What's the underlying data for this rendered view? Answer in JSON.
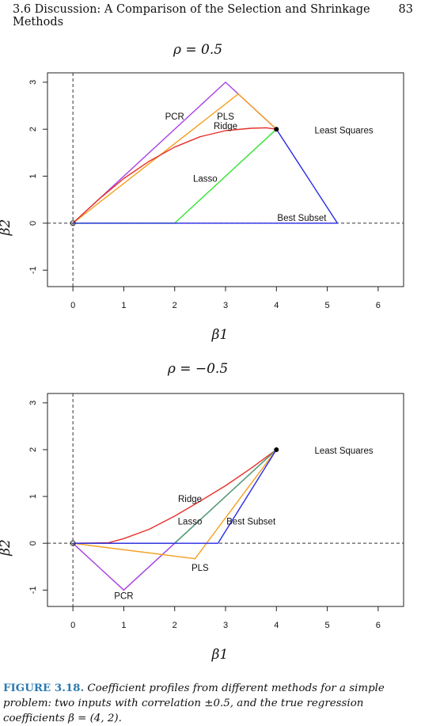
{
  "header": {
    "section_title": "3.6 Discussion: A Comparison of the Selection and Shrinkage Methods",
    "page_number": "83"
  },
  "caption": {
    "label": "FIGURE 3.18.",
    "text": "Coefficient profiles from different methods for a simple problem: two inputs with correlation ±0.5, and the true regression coefficients β = (4, 2)."
  },
  "colors": {
    "PCR": "#a83fe8",
    "PLS": "#f4a020",
    "Ridge": "#e8302a",
    "Lasso": "#33e533",
    "Best Subset": "#2a2ae8",
    "Lasso_panel2": "#4aa36a"
  },
  "chart_data": [
    {
      "type": "line",
      "title": "ρ = 0.5",
      "xlabel": "β1",
      "ylabel": "β2",
      "xlim": [
        -0.5,
        6.5
      ],
      "ylim": [
        -1.35,
        3.2
      ],
      "xticks": [
        "0",
        "1",
        "2",
        "3",
        "4",
        "5",
        "6"
      ],
      "yticks": [
        "-1",
        "0",
        "1",
        "2",
        "3"
      ],
      "reference_lines": {
        "x": 0,
        "y": 0,
        "style": "dashed"
      },
      "least_squares": {
        "x": 4,
        "y": 2,
        "label": "Least Squares"
      },
      "series": [
        {
          "name": "PCR",
          "x": [
            0,
            3,
            4
          ],
          "y": [
            0,
            3,
            2
          ]
        },
        {
          "name": "PLS",
          "x": [
            0,
            3.25,
            4
          ],
          "y": [
            0,
            2.75,
            2
          ]
        },
        {
          "name": "Ridge",
          "x": [
            0,
            0.5,
            1.0,
            1.5,
            2.0,
            2.5,
            3.0,
            3.5,
            3.8,
            4.0
          ],
          "y": [
            0,
            0.5,
            0.95,
            1.32,
            1.62,
            1.84,
            1.97,
            2.02,
            2.03,
            2.0
          ]
        },
        {
          "name": "Lasso",
          "x": [
            0,
            2,
            4
          ],
          "y": [
            0,
            0,
            2
          ]
        },
        {
          "name": "Best Subset",
          "x": [
            0,
            5.2,
            4
          ],
          "y": [
            0,
            0,
            2
          ]
        }
      ],
      "annotations": [
        {
          "text": "PCR",
          "x": 2.0,
          "y": 2.27
        },
        {
          "text": "PLS",
          "x": 3.0,
          "y": 2.27
        },
        {
          "text": "Ridge",
          "x": 3.0,
          "y": 2.07
        },
        {
          "text": "Lasso",
          "x": 2.6,
          "y": 0.95
        },
        {
          "text": "Best Subset",
          "x": 4.5,
          "y": 0.12
        },
        {
          "text": "Least Squares",
          "x": 4.75,
          "y": 1.98
        }
      ]
    },
    {
      "type": "line",
      "title": "ρ = −0.5",
      "xlabel": "β1",
      "ylabel": "β2",
      "xlim": [
        -0.5,
        6.5
      ],
      "ylim": [
        -1.35,
        3.2
      ],
      "xticks": [
        "0",
        "1",
        "2",
        "3",
        "4",
        "5",
        "6"
      ],
      "yticks": [
        "-1",
        "0",
        "1",
        "2",
        "3"
      ],
      "reference_lines": {
        "x": 0,
        "y": 0,
        "style": "dashed"
      },
      "least_squares": {
        "x": 4,
        "y": 2,
        "label": "Least Squares"
      },
      "series": [
        {
          "name": "PCR",
          "x": [
            0,
            1,
            4
          ],
          "y": [
            0,
            -1,
            2
          ]
        },
        {
          "name": "PLS",
          "x": [
            0,
            2.4,
            4
          ],
          "y": [
            0,
            -0.33,
            2
          ]
        },
        {
          "name": "Ridge",
          "x": [
            0,
            0.7,
            1.0,
            1.5,
            2.0,
            2.5,
            3.0,
            3.5,
            4.0
          ],
          "y": [
            0,
            0.01,
            0.1,
            0.3,
            0.58,
            0.9,
            1.23,
            1.6,
            2.0
          ]
        },
        {
          "name": "Lasso",
          "x": [
            0,
            2,
            4
          ],
          "y": [
            0,
            0,
            2
          ]
        },
        {
          "name": "Best Subset",
          "x": [
            0,
            2.85,
            4
          ],
          "y": [
            0,
            0,
            2
          ]
        }
      ],
      "annotations": [
        {
          "text": "Ridge",
          "x": 2.3,
          "y": 0.95
        },
        {
          "text": "Lasso",
          "x": 2.3,
          "y": 0.47
        },
        {
          "text": "Best Subset",
          "x": 3.5,
          "y": 0.47
        },
        {
          "text": "PLS",
          "x": 2.5,
          "y": -0.52
        },
        {
          "text": "PCR",
          "x": 1.0,
          "y": -1.12
        },
        {
          "text": "Least Squares",
          "x": 4.75,
          "y": 1.98
        }
      ]
    }
  ]
}
